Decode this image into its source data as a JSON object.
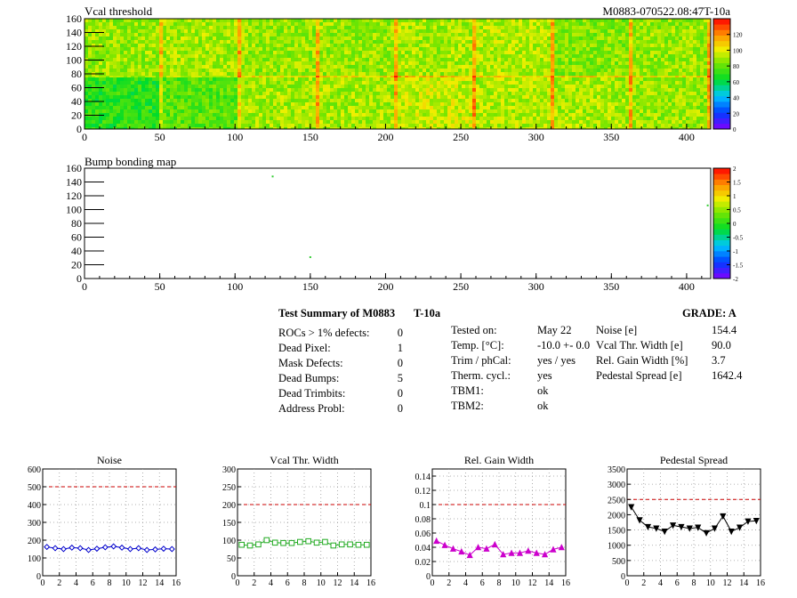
{
  "module": {
    "id_label": "M0883-070522.08:47T-10a"
  },
  "threshold_map": {
    "title": "Vcal threshold",
    "xticks": [
      "0",
      "50",
      "100",
      "150",
      "200",
      "250",
      "300",
      "350",
      "400"
    ],
    "yticks": [
      "0",
      "20",
      "40",
      "60",
      "80",
      "100",
      "120",
      "140",
      "160"
    ],
    "xrange": [
      0,
      416
    ],
    "yrange": [
      0,
      160
    ],
    "palette_ticks": [
      "0",
      "20",
      "40",
      "60",
      "80",
      "100",
      "120"
    ],
    "palette_range": [
      0,
      140
    ]
  },
  "bump_map": {
    "title": "Bump bonding map",
    "xticks": [
      "0",
      "50",
      "100",
      "150",
      "200",
      "250",
      "300",
      "350",
      "400"
    ],
    "yticks": [
      "0",
      "20",
      "40",
      "60",
      "80",
      "100",
      "120",
      "140",
      "160"
    ],
    "xrange": [
      0,
      416
    ],
    "yrange": [
      0,
      160
    ],
    "palette_ticks": [
      "-2",
      "-1.5",
      "-1",
      "-0.5",
      "0",
      "0.5",
      "1",
      "1.5",
      "2"
    ],
    "palette_range": [
      -2,
      2
    ]
  },
  "summary": {
    "title": "Test Summary of M0883",
    "test_type": "T-10a",
    "grade": "GRADE:  A",
    "left_rows": [
      {
        "label": "ROCs > 1% defects:",
        "value": "0"
      },
      {
        "label": "Dead Pixel:",
        "value": "1"
      },
      {
        "label": "Mask Defects:",
        "value": "0"
      },
      {
        "label": "Dead Bumps:",
        "value": "5"
      },
      {
        "label": "Dead Trimbits:",
        "value": "0"
      },
      {
        "label": "Address Probl:",
        "value": "0"
      }
    ],
    "mid_rows": [
      {
        "label": "Tested on:",
        "value": "May 22"
      },
      {
        "label": "Temp. [°C]:",
        "value": "-10.0 +- 0.0"
      },
      {
        "label": "Trim / phCal:",
        "value": "yes / yes"
      },
      {
        "label": "Therm. cycl.:",
        "value": "yes"
      },
      {
        "label": "TBM1:",
        "value": "ok"
      },
      {
        "label": "TBM2:",
        "value": "ok"
      }
    ],
    "right_rows": [
      {
        "label": "Noise [e]",
        "value": "154.4"
      },
      {
        "label": "Vcal Thr. Width [e]",
        "value": "90.0"
      },
      {
        "label": "Rel. Gain Width [%]",
        "value": "3.7"
      },
      {
        "label": "Pedestal Spread [e]",
        "value": "1642.4"
      }
    ]
  },
  "chart_data": [
    {
      "type": "heatmap",
      "title": "Vcal threshold",
      "xlim": [
        0,
        416
      ],
      "ylim": [
        0,
        160
      ],
      "note_rows": "upper half ROCs 8-15, lower half ROCs 0-7",
      "roc_mean_threshold": [
        70,
        78,
        90,
        90,
        95,
        92,
        90,
        88,
        88,
        85,
        92,
        90,
        88,
        88,
        90,
        88
      ],
      "zlim": [
        0,
        140
      ]
    },
    {
      "type": "heatmap",
      "title": "Bump bonding map",
      "xlim": [
        0,
        416
      ],
      "ylim": [
        0,
        160
      ],
      "points": [
        {
          "x": 125,
          "y": 148
        },
        {
          "x": 150,
          "y": 31
        },
        {
          "x": 414,
          "y": 106
        }
      ],
      "zlim": [
        -2,
        2
      ]
    },
    {
      "type": "scatter",
      "title": "Noise",
      "x": [
        0,
        1,
        2,
        3,
        4,
        5,
        6,
        7,
        8,
        9,
        10,
        11,
        12,
        13,
        14,
        15
      ],
      "values": [
        162,
        155,
        150,
        158,
        155,
        145,
        152,
        160,
        165,
        158,
        150,
        155,
        145,
        148,
        152,
        150
      ],
      "error": 12,
      "ylim": [
        0,
        600
      ],
      "xlim": [
        0,
        16
      ],
      "threshold": 500,
      "yticks": [
        "0",
        "100",
        "200",
        "300",
        "400",
        "500",
        "600"
      ],
      "xticks": [
        "0",
        "2",
        "4",
        "6",
        "8",
        "10",
        "12",
        "14",
        "16"
      ],
      "color": "#0000cc",
      "marker": "diamond"
    },
    {
      "type": "scatter",
      "title": "Vcal Thr. Width",
      "x": [
        0,
        1,
        2,
        3,
        4,
        5,
        6,
        7,
        8,
        9,
        10,
        11,
        12,
        13,
        14,
        15
      ],
      "values": [
        87,
        85,
        88,
        100,
        93,
        92,
        92,
        95,
        97,
        93,
        95,
        85,
        88,
        88,
        87,
        87
      ],
      "ylim": [
        0,
        300
      ],
      "xlim": [
        0,
        16
      ],
      "threshold": 200,
      "yticks": [
        "0",
        "50",
        "100",
        "150",
        "200",
        "250",
        "300"
      ],
      "xticks": [
        "0",
        "2",
        "4",
        "6",
        "8",
        "10",
        "12",
        "14",
        "16"
      ],
      "color": "#22aa22",
      "marker": "square"
    },
    {
      "type": "scatter",
      "title": "Rel. Gain Width",
      "x": [
        0,
        1,
        2,
        3,
        4,
        5,
        6,
        7,
        8,
        9,
        10,
        11,
        12,
        13,
        14,
        15
      ],
      "values": [
        0.049,
        0.043,
        0.038,
        0.034,
        0.029,
        0.04,
        0.038,
        0.044,
        0.03,
        0.032,
        0.032,
        0.035,
        0.032,
        0.03,
        0.037,
        0.04
      ],
      "ylim": [
        0,
        0.15
      ],
      "xlim": [
        0,
        16
      ],
      "threshold": 0.1,
      "yticks": [
        "0",
        "0.02",
        "0.04",
        "0.06",
        "0.08",
        "0.1",
        "0.12",
        "0.14"
      ],
      "ytick_values": [
        0,
        0.02,
        0.04,
        0.06,
        0.08,
        0.1,
        0.12,
        0.14
      ],
      "xticks": [
        "0",
        "2",
        "4",
        "6",
        "8",
        "10",
        "12",
        "14",
        "16"
      ],
      "color": "#cc00cc",
      "marker": "triangle"
    },
    {
      "type": "scatter",
      "title": "Pedestal Spread",
      "x": [
        0,
        1,
        2,
        3,
        4,
        5,
        6,
        7,
        8,
        9,
        10,
        11,
        12,
        13,
        14,
        15
      ],
      "values": [
        2250,
        1820,
        1600,
        1550,
        1450,
        1650,
        1600,
        1550,
        1580,
        1400,
        1550,
        1950,
        1450,
        1580,
        1780,
        1800
      ],
      "ylim": [
        0,
        3500
      ],
      "xlim": [
        0,
        16
      ],
      "threshold": 2500,
      "yticks": [
        "0",
        "500",
        "1000",
        "1500",
        "2000",
        "2500",
        "3000",
        "3500"
      ],
      "xticks": [
        "0",
        "2",
        "4",
        "6",
        "8",
        "10",
        "12",
        "14",
        "16"
      ],
      "color": "#000000",
      "marker": "triangle-down"
    }
  ]
}
